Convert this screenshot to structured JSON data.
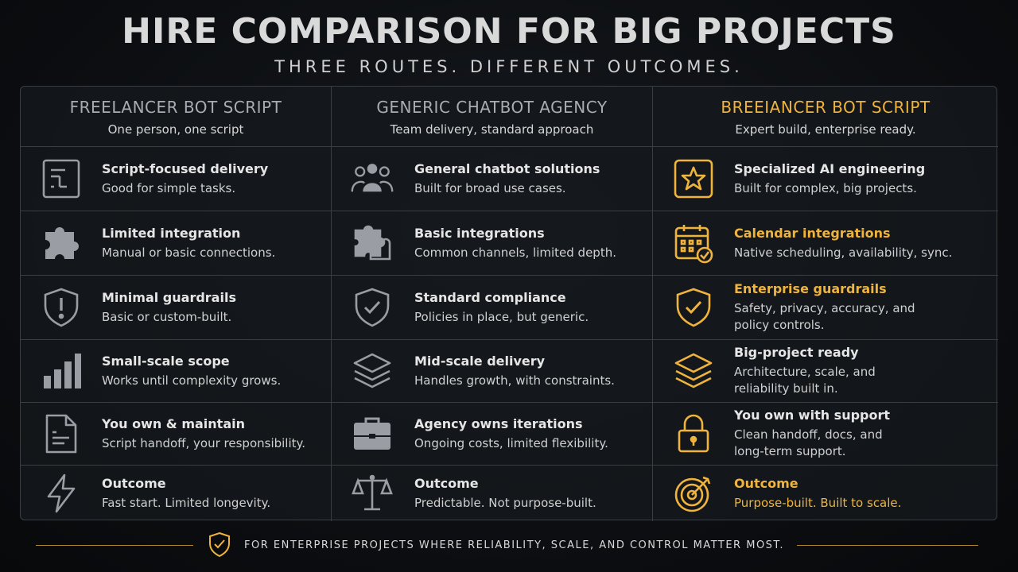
{
  "title": "HIRE COMPARISON FOR BIG PROJECTS",
  "subtitle": "THREE ROUTES. DIFFERENT OUTCOMES.",
  "columns": [
    {
      "heading": "FREELANCER BOT SCRIPT",
      "tagline": "One person, one script"
    },
    {
      "heading": "GENERIC CHATBOT AGENCY",
      "tagline": "Team delivery, standard approach"
    },
    {
      "heading": "BREEIANCER BOT SCRIPT",
      "tagline": "Expert build, enterprise ready."
    }
  ],
  "rows": [
    [
      {
        "icon": "script-icon",
        "title": "Script-focused delivery",
        "desc": "Good for simple tasks."
      },
      {
        "icon": "team-icon",
        "title": "General chatbot solutions",
        "desc": "Built for broad use cases."
      },
      {
        "icon": "star-icon",
        "title": "Specialized AI engineering",
        "desc": "Built for complex, big projects."
      }
    ],
    [
      {
        "icon": "puzzle-icon",
        "title": "Limited integration",
        "desc": "Manual or basic connections."
      },
      {
        "icon": "puzzle-outline-icon",
        "title": "Basic integrations",
        "desc": "Common channels, limited depth."
      },
      {
        "icon": "calendar-check-icon",
        "title": "Calendar integrations",
        "desc": "Native scheduling, availability, sync."
      }
    ],
    [
      {
        "icon": "shield-alert-icon",
        "title": "Minimal guardrails",
        "desc": "Basic or custom-built."
      },
      {
        "icon": "shield-check-icon",
        "title": "Standard compliance",
        "desc": "Policies in place, but generic."
      },
      {
        "icon": "shield-check-gold-icon",
        "title": "Enterprise guardrails",
        "desc": "Safety, privacy, accuracy, and policy controls."
      }
    ],
    [
      {
        "icon": "bar-chart-icon",
        "title": "Small-scale scope",
        "desc": "Works until complexity grows."
      },
      {
        "icon": "layers-icon",
        "title": "Mid-scale delivery",
        "desc": "Handles growth, with constraints."
      },
      {
        "icon": "layers-gold-icon",
        "title": "Big-project ready",
        "desc": "Architecture, scale, and reliability built in."
      }
    ],
    [
      {
        "icon": "document-icon",
        "title": "You own & maintain",
        "desc": "Script handoff, your responsibility."
      },
      {
        "icon": "briefcase-icon",
        "title": "Agency owns iterations",
        "desc": "Ongoing costs, limited flexibility."
      },
      {
        "icon": "lock-icon",
        "title": "You own with support",
        "desc": "Clean handoff, docs, and long-term support."
      }
    ],
    [
      {
        "icon": "lightning-icon",
        "title": "Outcome",
        "desc": "Fast start. Limited longevity."
      },
      {
        "icon": "scales-icon",
        "title": "Outcome",
        "desc": "Predictable. Not purpose-built."
      },
      {
        "icon": "target-icon",
        "title": "Outcome",
        "desc": "Purpose-built. Built to scale."
      }
    ]
  ],
  "footer": "FOR ENTERPRISE PROJECTS WHERE RELIABILITY, SCALE, AND CONTROL MATTER MOST.",
  "colors": {
    "accent": "#f0b43c",
    "icon_gray": "#9a9ea4",
    "border": "#3a3d42"
  }
}
